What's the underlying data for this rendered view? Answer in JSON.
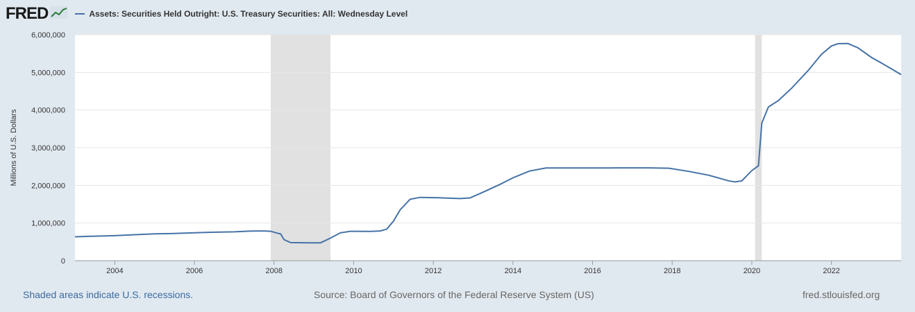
{
  "header": {
    "logo_text": "FRED",
    "logo_icon": "line-chart-icon"
  },
  "chart_data": {
    "type": "line",
    "title": "",
    "series": [
      {
        "name": "Assets: Securities Held Outright: U.S. Treasury Securities: All: Wednesday Level",
        "color": "#4572a7",
        "points": [
          [
            "2003-01-01",
            635000
          ],
          [
            "2003-06-01",
            650000
          ],
          [
            "2004-01-01",
            665000
          ],
          [
            "2004-06-01",
            685000
          ],
          [
            "2005-01-01",
            715000
          ],
          [
            "2005-06-01",
            720000
          ],
          [
            "2006-01-01",
            740000
          ],
          [
            "2006-06-01",
            755000
          ],
          [
            "2007-01-01",
            765000
          ],
          [
            "2007-06-01",
            785000
          ],
          [
            "2007-10-01",
            790000
          ],
          [
            "2007-12-01",
            780000
          ],
          [
            "2008-02-01",
            730000
          ],
          [
            "2008-03-01",
            710000
          ],
          [
            "2008-04-01",
            560000
          ],
          [
            "2008-06-01",
            480000
          ],
          [
            "2008-10-01",
            477000
          ],
          [
            "2009-01-01",
            475000
          ],
          [
            "2009-03-01",
            475000
          ],
          [
            "2009-06-01",
            600000
          ],
          [
            "2009-09-01",
            740000
          ],
          [
            "2009-12-01",
            780000
          ],
          [
            "2010-06-01",
            778000
          ],
          [
            "2010-09-01",
            790000
          ],
          [
            "2010-11-01",
            840000
          ],
          [
            "2011-01-01",
            1050000
          ],
          [
            "2011-03-01",
            1350000
          ],
          [
            "2011-06-01",
            1630000
          ],
          [
            "2011-09-01",
            1680000
          ],
          [
            "2012-03-01",
            1670000
          ],
          [
            "2012-09-01",
            1650000
          ],
          [
            "2012-12-01",
            1665000
          ],
          [
            "2013-03-01",
            1780000
          ],
          [
            "2013-09-01",
            2020000
          ],
          [
            "2014-01-01",
            2200000
          ],
          [
            "2014-06-01",
            2380000
          ],
          [
            "2014-11-01",
            2460000
          ],
          [
            "2015-06-01",
            2461000
          ],
          [
            "2016-06-01",
            2462000
          ],
          [
            "2017-06-01",
            2465000
          ],
          [
            "2017-12-01",
            2455000
          ],
          [
            "2018-06-01",
            2370000
          ],
          [
            "2018-12-01",
            2270000
          ],
          [
            "2019-06-01",
            2120000
          ],
          [
            "2019-08-01",
            2090000
          ],
          [
            "2019-10-01",
            2120000
          ],
          [
            "2020-01-01",
            2390000
          ],
          [
            "2020-03-01",
            2520000
          ],
          [
            "2020-04-01",
            3650000
          ],
          [
            "2020-06-01",
            4080000
          ],
          [
            "2020-09-01",
            4250000
          ],
          [
            "2021-01-01",
            4580000
          ],
          [
            "2021-06-01",
            5050000
          ],
          [
            "2021-10-01",
            5480000
          ],
          [
            "2022-01-01",
            5700000
          ],
          [
            "2022-03-01",
            5760000
          ],
          [
            "2022-06-01",
            5765000
          ],
          [
            "2022-09-01",
            5650000
          ],
          [
            "2023-01-01",
            5400000
          ],
          [
            "2023-06-01",
            5150000
          ],
          [
            "2023-10-01",
            4940000
          ]
        ]
      }
    ],
    "recessions": [
      [
        "2007-12-01",
        "2009-06-01"
      ],
      [
        "2020-02-01",
        "2020-04-01"
      ]
    ],
    "xlim": [
      "2003-01-01",
      "2023-10-01"
    ],
    "ylim": [
      0,
      6000000
    ],
    "ylabel": "Millions of U.S. Dollars",
    "xticks": [
      "2004",
      "2006",
      "2008",
      "2010",
      "2012",
      "2014",
      "2016",
      "2018",
      "2020",
      "2022"
    ],
    "yticks": [
      {
        "value": 0,
        "label": "0"
      },
      {
        "value": 1000000,
        "label": "1,000,000"
      },
      {
        "value": 2000000,
        "label": "2,000,000"
      },
      {
        "value": 3000000,
        "label": "3,000,000"
      },
      {
        "value": 4000000,
        "label": "4,000,000"
      },
      {
        "value": 5000000,
        "label": "5,000,000"
      },
      {
        "value": 6000000,
        "label": "6,000,000"
      }
    ],
    "grid": true
  },
  "footer": {
    "recession_note": "Shaded areas indicate U.S. recessions.",
    "source": "Source: Board of Governors of the Federal Reserve System (US)",
    "url": "fred.stlouisfed.org"
  }
}
